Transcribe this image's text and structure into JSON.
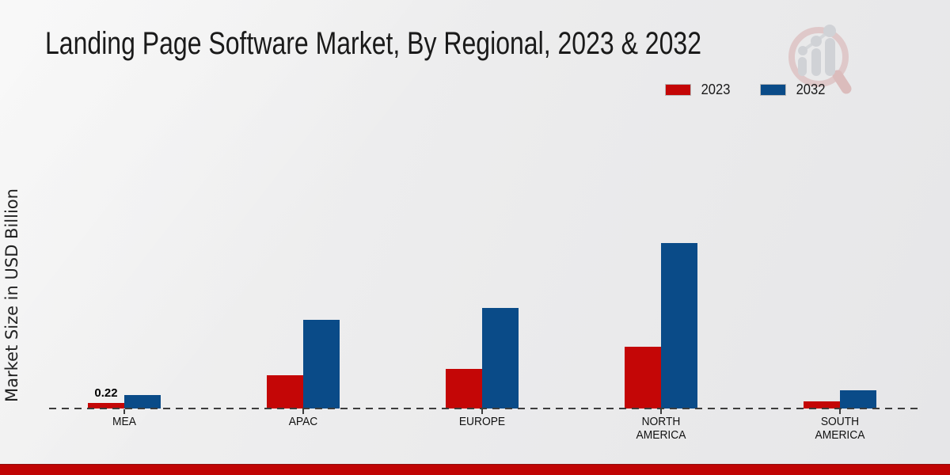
{
  "chart_data": {
    "type": "bar",
    "title": "Landing Page Software Market, By Regional, 2023 & 2032",
    "ylabel": "Market Size in USD Billion",
    "xlabel": "",
    "categories": [
      "MEA",
      "APAC",
      "EUROPE",
      "NORTH AMERICA",
      "SOUTH AMERICA"
    ],
    "series": [
      {
        "name": "2023",
        "color": "#c40606",
        "values": [
          0.22,
          1.32,
          1.57,
          2.45,
          0.28
        ]
      },
      {
        "name": "2032",
        "color": "#0a4b88",
        "values": [
          0.53,
          3.52,
          3.99,
          6.57,
          0.72
        ]
      }
    ],
    "annotations": [
      {
        "category": "MEA",
        "series": "2023",
        "text": "0.22"
      }
    ],
    "ylim": [
      0,
      7
    ],
    "grid": false,
    "legend_position": "top-right",
    "axis_style": "dashed-baseline",
    "units": "USD Billion"
  },
  "footer": {
    "accent_color": "#c00404"
  },
  "watermark": {
    "name": "market-research-future-logo"
  }
}
